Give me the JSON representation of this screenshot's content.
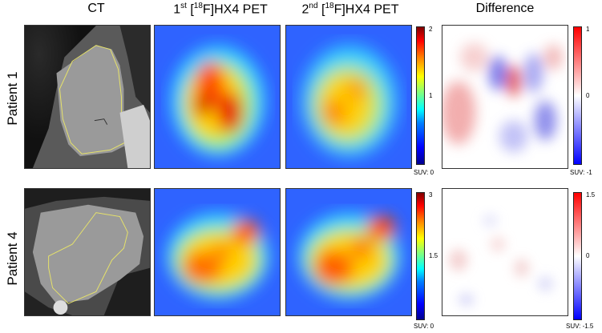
{
  "columns": {
    "ct": "CT",
    "pet1_prefix": "1",
    "pet1_sup1": "st",
    "pet1_mid": " [",
    "pet1_sup2": "18",
    "pet1_suffix": "F]HX4 PET",
    "pet2_prefix": "2",
    "pet2_sup1": "nd",
    "pet2_mid": " [",
    "pet2_sup2": "18",
    "pet2_suffix": "F]HX4 PET",
    "difference": "Difference"
  },
  "rows": [
    {
      "label": "Patient 1",
      "pet_scale": {
        "max": "2",
        "mid": "1",
        "min": "SUV: 0"
      },
      "diff_scale": {
        "max": "1",
        "mid": "0",
        "min": "SUV: -1"
      }
    },
    {
      "label": "Patient 4",
      "pet_scale": {
        "max": "3",
        "mid": "1.5",
        "min": "SUV: 0"
      },
      "diff_scale": {
        "max": "1.5",
        "mid": "0",
        "min": "SUV: -1.5"
      }
    }
  ],
  "colors": {
    "contour": "#e6e26a",
    "ct_background": "#9a9a9a",
    "pet_low": "#0038ff",
    "pet_high": "#d80000"
  }
}
